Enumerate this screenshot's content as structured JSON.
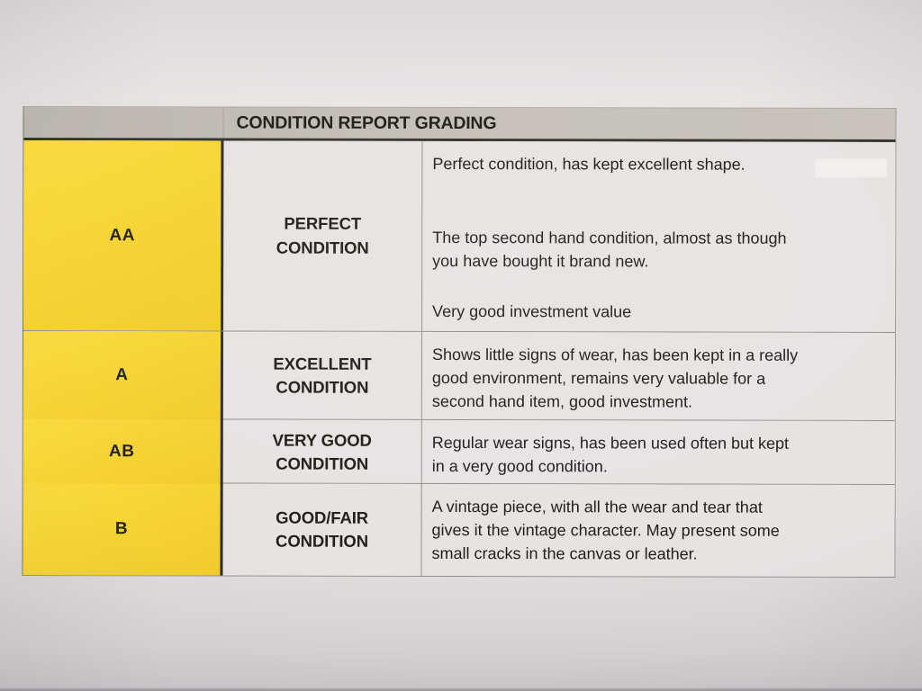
{
  "table": {
    "title": "CONDITION REPORT GRADING",
    "rows": [
      {
        "grade": "AA",
        "condition": "PERFECT\nCONDITION",
        "description_paragraphs": [
          "Perfect condition, has kept excellent shape.",
          "The top second hand condition, almost as though\nyou have bought it brand new.",
          "Very good investment value"
        ]
      },
      {
        "grade": "A",
        "condition": "EXCELLENT\nCONDITION",
        "description_paragraphs": [
          "Shows little signs of wear, has been kept in a really\ngood environment, remains very valuable for a\nsecond hand item, good investment."
        ]
      },
      {
        "grade": "AB",
        "condition": "VERY GOOD\nCONDITION",
        "description_paragraphs": [
          "Regular wear signs, has been used often but kept\nin a very good condition."
        ]
      },
      {
        "grade": "B",
        "condition": "GOOD/FAIR\nCONDITION",
        "description_paragraphs": [
          "A vintage piece, with all the wear and tear that\ngives it the vintage character. May present some\nsmall cracks in the canvas or leather."
        ]
      }
    ]
  },
  "colors": {
    "grade_column_yellow": "#F6D332",
    "header_bar_gray": "#C3BFB8",
    "paper_background": "#E7E5E4",
    "text_black": "#1F1D1B",
    "thick_rule": "#2E2B26",
    "thin_rule": "#908D87"
  }
}
